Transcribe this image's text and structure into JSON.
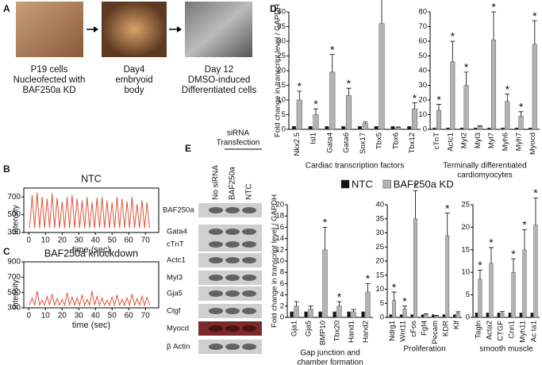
{
  "figure": {
    "panel_labels": [
      "A",
      "B",
      "C",
      "D",
      "E"
    ],
    "panel_a": {
      "captions": [
        [
          "P19 cells",
          "Nucleofected with",
          "BAF250a KD"
        ],
        [
          "Day4",
          "embryoid",
          "body"
        ],
        [
          "Day 12",
          "DMSO-induced",
          "Differentiated cells"
        ]
      ]
    },
    "panel_e": {
      "header": [
        "siRNA",
        "Transfection"
      ],
      "lanes": [
        "No siRNA",
        "BAF250a",
        "NTC"
      ],
      "rows": [
        "BAF250a",
        "Gata4",
        "cTnT",
        "Actc1",
        "Myl3",
        "Gja5",
        "Ctgf",
        "Myocd",
        "β Actin"
      ]
    }
  },
  "chart_data": [
    {
      "type": "line",
      "title": "NTC",
      "xlabel": "time (sec)",
      "ylabel": "Intensity",
      "x": [
        0.5,
        2,
        3.5,
        5,
        6.5,
        8,
        9.5,
        11,
        12.5,
        14,
        15.5,
        17,
        18.5,
        20,
        21.5,
        23,
        24.5,
        26,
        27.5,
        29,
        30.5,
        32,
        33.5,
        35,
        36.5,
        38,
        39.5,
        41,
        42.5,
        44,
        45.5,
        47,
        48.5,
        50,
        51.5,
        53,
        54.5,
        56,
        57.5,
        59,
        60.5,
        62,
        63.5,
        65,
        66.5,
        68,
        69.5,
        71,
        72.5
      ],
      "series": [
        {
          "color": "#e0533a",
          "values": [
            350,
            720,
            350,
            750,
            350,
            700,
            350,
            680,
            350,
            740,
            350,
            690,
            350,
            650,
            350,
            700,
            350,
            720,
            350,
            680,
            350,
            660,
            350,
            700,
            350,
            640,
            350,
            690,
            350,
            700,
            350,
            660,
            350,
            640,
            350,
            700,
            350,
            680,
            350,
            650,
            350,
            700,
            350,
            620,
            350,
            660,
            350,
            640,
            350
          ]
        }
      ],
      "xlim": [
        -3,
        78
      ],
      "xticks": [
        0,
        10,
        20,
        30,
        40,
        50,
        60,
        70
      ],
      "ylim": [
        300,
        800
      ],
      "yticks": [
        300,
        500,
        700
      ]
    },
    {
      "type": "line",
      "title": "BAF250a knockdown",
      "xlabel": "time (sec)",
      "ylabel": "Intensity",
      "x": [
        0.5,
        2,
        3.5,
        5,
        6.5,
        8,
        9.5,
        11,
        12.5,
        14,
        15.5,
        17,
        18.5,
        20,
        21.5,
        23,
        24.5,
        26,
        27.5,
        29,
        30.5,
        32,
        33.5,
        35,
        36.5,
        38,
        39.5,
        41,
        42.5,
        44,
        45.5,
        47,
        48.5,
        50,
        51.5,
        53,
        54.5,
        56,
        57.5,
        59,
        60.5,
        62,
        63.5,
        65,
        66.5,
        68,
        69.5,
        71,
        72.5
      ],
      "series": [
        {
          "color": "#e0533a",
          "values": [
            335,
            430,
            335,
            520,
            335,
            400,
            335,
            450,
            335,
            480,
            335,
            420,
            335,
            410,
            335,
            500,
            335,
            440,
            335,
            430,
            335,
            470,
            335,
            410,
            335,
            520,
            335,
            450,
            335,
            430,
            335,
            400,
            335,
            440,
            335,
            470,
            335,
            410,
            335,
            430,
            335,
            480,
            335,
            420,
            335,
            450,
            335,
            440,
            335
          ]
        }
      ],
      "xlim": [
        -3,
        78
      ],
      "xticks": [
        0,
        10,
        20,
        30,
        40,
        50,
        60,
        70
      ],
      "ylim": [
        300,
        900
      ],
      "yticks": [
        300,
        500,
        700,
        900
      ]
    },
    {
      "type": "bar",
      "xlabel": [
        "Cardiac transcription factors"
      ],
      "ylabel": "Fold change in transcript level / GAPDH",
      "categories": [
        "Nkx2.5",
        "Isl1",
        "Gata4",
        "Gata6",
        "Sox17",
        "Tbx5",
        "Tbx6",
        "Tbx12"
      ],
      "series": [
        {
          "name": "NTC",
          "color": "#111111",
          "values": [
            1,
            1,
            1,
            1,
            1,
            1,
            1,
            1
          ]
        },
        {
          "name": "BAF250a KD",
          "color": "#b3b3b3",
          "values": [
            10,
            5,
            19.5,
            11.5,
            2,
            36,
            0.5,
            7
          ],
          "errors": [
            3,
            2,
            6,
            2.5,
            0.5,
            11,
            0.3,
            2
          ]
        }
      ],
      "annotations": [
        "*",
        "*",
        "*",
        "*",
        null,
        "*",
        null,
        "*"
      ],
      "ylim": [
        0,
        40
      ],
      "yticks": [
        0,
        5,
        10,
        15,
        20,
        25,
        30,
        35,
        40
      ]
    },
    {
      "type": "bar",
      "xlabel": [
        "Terminally differentiated",
        "cardiomyocytes"
      ],
      "categories": [
        "cTnT",
        "Actc1",
        "Myl2",
        "Myl3",
        "Myl7",
        "Myh6",
        "Myh7",
        "Myocd"
      ],
      "series": [
        {
          "color": "#111111",
          "values": [
            1,
            1,
            1,
            1,
            1,
            1,
            1,
            1
          ]
        },
        {
          "color": "#b3b3b3",
          "values": [
            13,
            46,
            30,
            2,
            61,
            19,
            9,
            58
          ],
          "errors": [
            4,
            14,
            9,
            0.5,
            19,
            5,
            3,
            16
          ]
        }
      ],
      "annotations": [
        "*",
        "*",
        "*",
        null,
        "*",
        "*",
        "*",
        "*"
      ],
      "ylim": [
        0,
        80
      ],
      "yticks": [
        0,
        10,
        20,
        30,
        40,
        50,
        60,
        70,
        80
      ]
    },
    {
      "type": "bar",
      "xlabel": [
        "Gap junction and",
        "chamber formation"
      ],
      "ylabel": "Fold change in transcript level / GAPDH",
      "categories": [
        "Gja1",
        "Gja5",
        "BMP10",
        "Tbx20",
        "Hand1",
        "Hand2"
      ],
      "series": [
        {
          "color": "#111111",
          "values": [
            1,
            1,
            1,
            1,
            1,
            1
          ]
        },
        {
          "color": "#b3b3b3",
          "values": [
            2,
            1.5,
            12,
            2,
            1,
            4.5
          ],
          "errors": [
            0.8,
            0.5,
            4,
            0.8,
            0.4,
            1.5
          ]
        }
      ],
      "annotations": [
        null,
        null,
        "*",
        "*",
        null,
        "*"
      ],
      "ylim": [
        0,
        20
      ],
      "yticks": [
        0,
        2,
        4,
        6,
        8,
        10,
        12,
        14,
        16,
        18,
        20
      ]
    },
    {
      "type": "bar",
      "xlabel": [
        "Proliferation"
      ],
      "categories": [
        "Ndrg1",
        "Wnt11",
        "cFos",
        "Fgf4",
        "Pecam",
        "KDR",
        "Klf"
      ],
      "series": [
        {
          "color": "#111111",
          "values": [
            1,
            1,
            1,
            1,
            1,
            1,
            1
          ]
        },
        {
          "color": "#b3b3b3",
          "values": [
            6,
            3,
            35,
            1,
            0.5,
            29,
            1.5
          ],
          "errors": [
            3,
            1,
            10,
            0.3,
            0.2,
            8,
            0.5
          ]
        }
      ],
      "annotations": [
        "*",
        "*",
        "*",
        null,
        null,
        "*",
        null
      ],
      "ylim": [
        0,
        40
      ],
      "yticks": [
        0,
        5,
        10,
        15,
        20,
        25,
        30,
        35,
        40
      ]
    },
    {
      "type": "bar",
      "xlabel": [
        "smooth muscle"
      ],
      "categories": [
        "Tagln",
        "Acta2",
        "CTGF",
        "Cnn1",
        "Myh11",
        "Ac ta1"
      ],
      "series": [
        {
          "color": "#111111",
          "values": [
            1,
            1,
            1,
            1,
            1,
            1
          ]
        },
        {
          "color": "#b3b3b3",
          "values": [
            8.5,
            12,
            1,
            10,
            15,
            20.5
          ],
          "errors": [
            2,
            3.5,
            0.3,
            3,
            4.5,
            6
          ]
        }
      ],
      "annotations": [
        "*",
        "*",
        null,
        "*",
        "*",
        "*"
      ],
      "ylim": [
        0,
        25
      ],
      "yticks": [
        0,
        5,
        10,
        15,
        20,
        25
      ]
    }
  ]
}
